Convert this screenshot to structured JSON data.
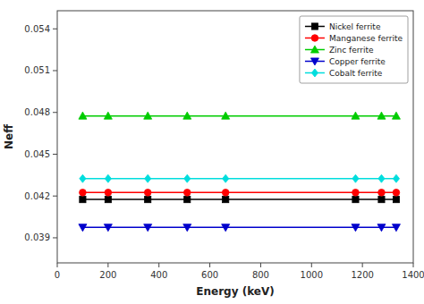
{
  "chart_data": {
    "type": "line",
    "x": [
      100,
      200,
      356,
      511,
      662,
      1173,
      1275,
      1333
    ],
    "series": [
      {
        "name": "Nickel ferrite",
        "color": "#000000",
        "marker": "square",
        "values": [
          0.04175,
          0.04175,
          0.04175,
          0.04175,
          0.04175,
          0.04175,
          0.04175,
          0.04175
        ]
      },
      {
        "name": "Manganese ferrite",
        "color": "#ff0000",
        "marker": "circle",
        "values": [
          0.04225,
          0.04225,
          0.04225,
          0.04225,
          0.04225,
          0.04225,
          0.04225,
          0.04225
        ]
      },
      {
        "name": "Zinc ferrite",
        "color": "#00cc00",
        "marker": "triangle-up",
        "values": [
          0.04775,
          0.04775,
          0.04775,
          0.04775,
          0.04775,
          0.04775,
          0.04775,
          0.04775
        ]
      },
      {
        "name": "Copper ferrite",
        "color": "#0000cc",
        "marker": "triangle-down",
        "values": [
          0.03975,
          0.03975,
          0.03975,
          0.03975,
          0.03975,
          0.03975,
          0.03975,
          0.03975
        ]
      },
      {
        "name": "Cobalt ferrite",
        "color": "#00dddd",
        "marker": "diamond",
        "values": [
          0.04325,
          0.04325,
          0.04325,
          0.04325,
          0.04325,
          0.04325,
          0.04325,
          0.04325
        ]
      }
    ],
    "x_label": "Energy (keV)",
    "y_label": "Neff",
    "xlim": [
      0,
      1400
    ],
    "ylim": [
      0.0372,
      0.0553
    ],
    "xticks": [
      0,
      200,
      400,
      600,
      800,
      1000,
      1200,
      1400
    ],
    "yticks": [
      0.039,
      0.042,
      0.045,
      0.048,
      0.051,
      0.054
    ],
    "legend": "upper right",
    "grid": false
  }
}
